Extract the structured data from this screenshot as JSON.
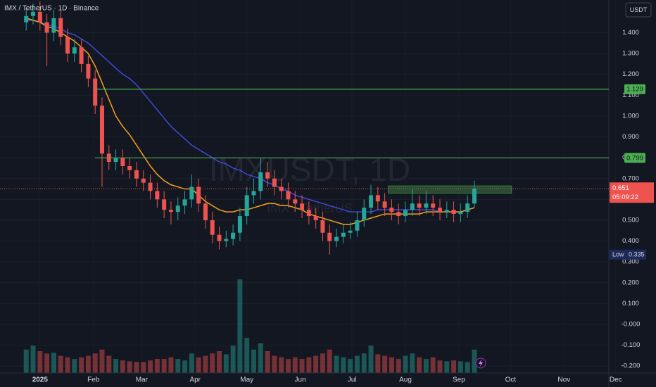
{
  "chart_data": {
    "type": "candlestick",
    "title": "IMX / TetherUS · 1D · Binance",
    "currency_button": "USDT",
    "watermark": "IMXUSDT, 1D",
    "watermark_sub": "IMX / TetherUS",
    "up_color": "#26a69a",
    "down_color": "#ef5350",
    "ylim": [
      -0.233,
      1.557
    ],
    "yticks": [
      {
        "value": 1.4,
        "label": "1.400"
      },
      {
        "value": 1.3,
        "label": "1.300"
      },
      {
        "value": 1.2,
        "label": "1.200"
      },
      {
        "value": 1.1,
        "label": "1.100"
      },
      {
        "value": 1.0,
        "label": "1.000"
      },
      {
        "value": 0.9,
        "label": "0.900"
      },
      {
        "value": 0.8,
        "label": "0.800"
      },
      {
        "value": 0.7,
        "label": "0.700"
      },
      {
        "value": 0.6,
        "label": "0.600"
      },
      {
        "value": 0.5,
        "label": "0.500"
      },
      {
        "value": 0.4,
        "label": "0.400"
      },
      {
        "value": 0.3,
        "label": "0.300"
      },
      {
        "value": 0.2,
        "label": "0.200"
      },
      {
        "value": 0.1,
        "label": "0.100"
      },
      {
        "value": 0,
        "label": "-0.000"
      },
      {
        "value": -0.1,
        "label": "-0.100"
      },
      {
        "value": -0.2,
        "label": "-0.200"
      }
    ],
    "xlim": [
      -3.8,
      84.5
    ],
    "xticks": [
      {
        "value": 2,
        "label": "2025"
      },
      {
        "value": 9.75,
        "label": "Feb"
      },
      {
        "value": 16.75,
        "label": "Mar"
      },
      {
        "value": 24.5,
        "label": "Apr"
      },
      {
        "value": 32,
        "label": "May"
      },
      {
        "value": 39.75,
        "label": "Jun"
      },
      {
        "value": 47.25,
        "label": "Jul"
      },
      {
        "value": 55,
        "label": "Aug"
      },
      {
        "value": 62.75,
        "label": "Sep"
      },
      {
        "value": 70.25,
        "label": "Oct"
      },
      {
        "value": 78,
        "label": "Nov"
      },
      {
        "value": 85.5,
        "label": "Dec"
      }
    ],
    "open": [
      1.45,
      1.48,
      1.5,
      1.45,
      1.4,
      1.47,
      1.38,
      1.3,
      1.33,
      1.25,
      1.18,
      1.05,
      0.82,
      0.78,
      0.8,
      0.76,
      0.74,
      0.7,
      0.68,
      0.64,
      0.6,
      0.55,
      0.54,
      0.57,
      0.6,
      0.66,
      0.58,
      0.5,
      0.43,
      0.4,
      0.41,
      0.44,
      0.52,
      0.62,
      0.64,
      0.73,
      0.7,
      0.66,
      0.64,
      0.6,
      0.58,
      0.55,
      0.52,
      0.5,
      0.44,
      0.4,
      0.42,
      0.44,
      0.45,
      0.5,
      0.56,
      0.62,
      0.59,
      0.56,
      0.54,
      0.52,
      0.55,
      0.58,
      0.56,
      0.58,
      0.56,
      0.54,
      0.55,
      0.53,
      0.54,
      0.58
    ],
    "high": [
      1.52,
      1.54,
      1.55,
      1.49,
      1.51,
      1.51,
      1.42,
      1.37,
      1.37,
      1.29,
      1.22,
      1.09,
      0.86,
      0.84,
      0.84,
      0.8,
      0.78,
      0.74,
      0.72,
      0.68,
      0.64,
      0.59,
      0.61,
      0.64,
      0.72,
      0.7,
      0.62,
      0.54,
      0.47,
      0.45,
      0.48,
      0.56,
      0.66,
      0.7,
      0.8,
      0.78,
      0.74,
      0.7,
      0.68,
      0.64,
      0.62,
      0.59,
      0.56,
      0.54,
      0.48,
      0.46,
      0.48,
      0.49,
      0.54,
      0.6,
      0.67,
      0.66,
      0.63,
      0.6,
      0.58,
      0.59,
      0.65,
      0.62,
      0.64,
      0.62,
      0.6,
      0.59,
      0.59,
      0.58,
      0.62,
      0.69
    ],
    "low": [
      1.41,
      1.44,
      1.41,
      1.24,
      1.36,
      1.34,
      1.26,
      1.26,
      1.21,
      1.14,
      1.01,
      0.66,
      0.74,
      0.74,
      0.72,
      0.7,
      0.66,
      0.64,
      0.6,
      0.56,
      0.51,
      0.48,
      0.5,
      0.53,
      0.56,
      0.54,
      0.46,
      0.39,
      0.36,
      0.37,
      0.38,
      0.4,
      0.48,
      0.58,
      0.6,
      0.66,
      0.62,
      0.6,
      0.56,
      0.54,
      0.51,
      0.48,
      0.46,
      0.4,
      0.335,
      0.37,
      0.39,
      0.41,
      0.42,
      0.47,
      0.53,
      0.55,
      0.52,
      0.5,
      0.48,
      0.49,
      0.52,
      0.52,
      0.53,
      0.52,
      0.5,
      0.51,
      0.49,
      0.49,
      0.51,
      0.56
    ],
    "close": [
      1.48,
      1.5,
      1.45,
      1.4,
      1.47,
      1.38,
      1.3,
      1.33,
      1.25,
      1.18,
      1.05,
      0.82,
      0.78,
      0.8,
      0.76,
      0.74,
      0.7,
      0.68,
      0.64,
      0.6,
      0.55,
      0.54,
      0.57,
      0.6,
      0.66,
      0.58,
      0.5,
      0.43,
      0.4,
      0.41,
      0.44,
      0.52,
      0.62,
      0.64,
      0.73,
      0.7,
      0.66,
      0.64,
      0.6,
      0.58,
      0.55,
      0.52,
      0.5,
      0.44,
      0.4,
      0.42,
      0.44,
      0.45,
      0.5,
      0.56,
      0.62,
      0.59,
      0.56,
      0.54,
      0.52,
      0.55,
      0.58,
      0.56,
      0.58,
      0.56,
      0.54,
      0.55,
      0.53,
      0.54,
      0.58,
      0.651
    ],
    "volume": [
      30,
      35,
      28,
      25,
      26,
      22,
      20,
      18,
      20,
      22,
      25,
      30,
      22,
      18,
      16,
      15,
      14,
      14,
      16,
      18,
      18,
      20,
      18,
      16,
      25,
      20,
      22,
      25,
      28,
      24,
      35,
      120,
      45,
      30,
      38,
      28,
      22,
      20,
      18,
      20,
      18,
      20,
      22,
      25,
      30,
      22,
      20,
      18,
      22,
      25,
      35,
      24,
      22,
      20,
      18,
      22,
      25,
      20,
      18,
      20,
      16,
      15,
      16,
      15,
      14,
      30
    ],
    "moving_averages": [
      {
        "color": "#3f48d8",
        "values": [
          1.46,
          1.46,
          1.45,
          1.44,
          1.43,
          1.42,
          1.4,
          1.39,
          1.37,
          1.35,
          1.32,
          1.29,
          1.26,
          1.23,
          1.2,
          1.18,
          1.15,
          1.11,
          1.07,
          1.03,
          0.99,
          0.95,
          0.92,
          0.89,
          0.86,
          0.84,
          0.82,
          0.8,
          0.78,
          0.77,
          0.75,
          0.74,
          0.72,
          0.71,
          0.7,
          0.68,
          0.67,
          0.65,
          0.64,
          0.62,
          0.61,
          0.6,
          0.59,
          0.58,
          0.57,
          0.56,
          0.55,
          0.54,
          0.54,
          0.54,
          0.54,
          0.55,
          0.55,
          0.55,
          0.55,
          0.55,
          0.55,
          0.55,
          0.55,
          0.55,
          0.54,
          0.54,
          0.54,
          0.54,
          0.55,
          0.56
        ]
      },
      {
        "color": "#f7a21b",
        "values": [
          1.47,
          1.46,
          1.45,
          1.43,
          1.42,
          1.4,
          1.38,
          1.36,
          1.33,
          1.3,
          1.24,
          1.16,
          1.08,
          1.0,
          0.95,
          0.91,
          0.86,
          0.81,
          0.76,
          0.72,
          0.69,
          0.67,
          0.66,
          0.65,
          0.65,
          0.62,
          0.59,
          0.57,
          0.55,
          0.54,
          0.54,
          0.55,
          0.55,
          0.56,
          0.57,
          0.58,
          0.58,
          0.57,
          0.57,
          0.56,
          0.55,
          0.53,
          0.52,
          0.51,
          0.5,
          0.49,
          0.48,
          0.48,
          0.49,
          0.5,
          0.51,
          0.52,
          0.53,
          0.53,
          0.53,
          0.53,
          0.53,
          0.53,
          0.54,
          0.54,
          0.54,
          0.54,
          0.54,
          0.54,
          0.55,
          0.56
        ]
      }
    ],
    "level_color": "#4caf50",
    "levels": [
      1.129,
      0.799
    ],
    "zone": {
      "low": 0.63,
      "high": 0.665,
      "x": [
        52.5,
        70.4
      ]
    },
    "last_price": 0.651,
    "countdown": "05:09:22",
    "low_label": "Low",
    "low_value": 0.335
  }
}
